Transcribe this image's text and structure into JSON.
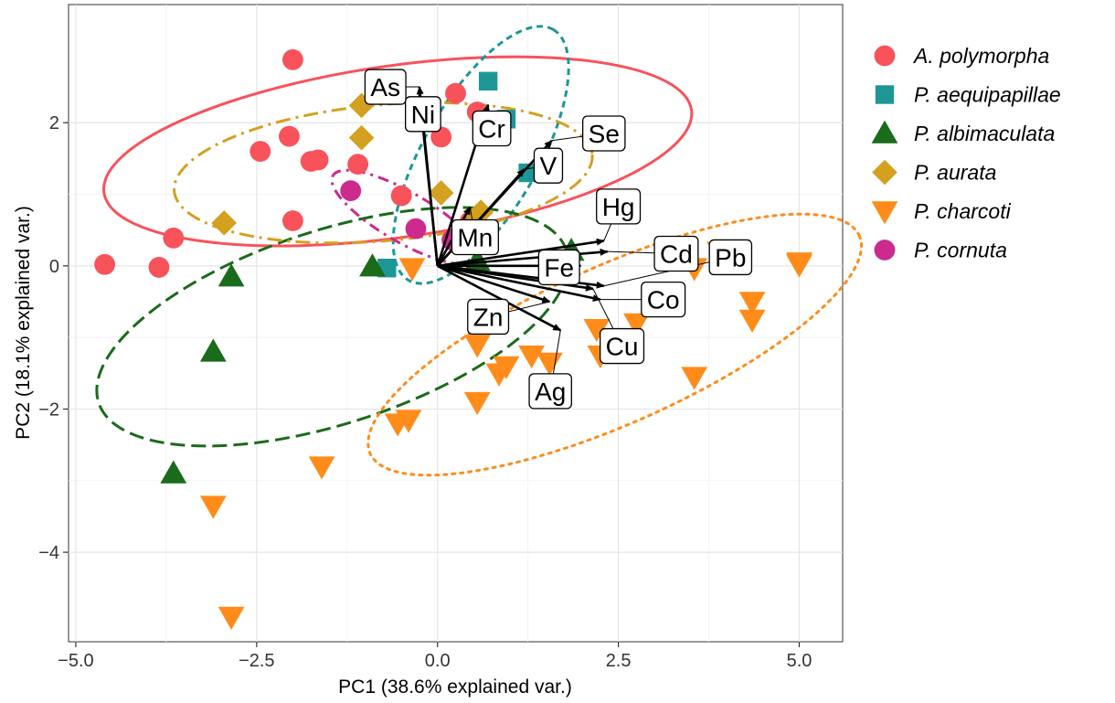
{
  "chart_data": {
    "type": "scatter",
    "subtype": "pca-biplot",
    "title": "",
    "xlabel": "PC1 (38.6% explained var.)",
    "ylabel": "PC2 (18.1% explained var.)",
    "xlim": [
      -5.1,
      5.6
    ],
    "ylim": [
      -5.25,
      3.65
    ],
    "xticks": [
      -5.0,
      -2.5,
      0.0,
      2.5,
      5.0
    ],
    "xtick_labels": [
      "−5.0",
      "−2.5",
      "0.0",
      "2.5",
      "5.0"
    ],
    "yticks": [
      -4,
      -2,
      0,
      2
    ],
    "ytick_labels": [
      "−4",
      "−2",
      "0",
      "2"
    ],
    "grid": true,
    "legend_position": "right",
    "series": [
      {
        "name": "A. polymorpha",
        "color": "#F8525A",
        "marker": "circle",
        "ellipse_style": "solid",
        "points": [
          [
            -4.6,
            0.02
          ],
          [
            -3.85,
            -0.02
          ],
          [
            -3.65,
            0.39
          ],
          [
            -2.45,
            1.6
          ],
          [
            -2.0,
            2.88
          ],
          [
            -2.05,
            1.81
          ],
          [
            -2.0,
            0.63
          ],
          [
            -1.75,
            1.46
          ],
          [
            -1.65,
            1.48
          ],
          [
            -1.1,
            1.42
          ],
          [
            -0.5,
            0.98
          ],
          [
            0.05,
            1.8
          ],
          [
            0.25,
            2.41
          ],
          [
            0.55,
            2.15
          ],
          [
            0.45,
            0.62
          ]
        ],
        "ellipse": {
          "cx": -0.55,
          "cy": 1.6,
          "rx": 4.1,
          "ry": 1.2,
          "angle_deg": 8
        }
      },
      {
        "name": "P. aequipapillae",
        "color": "#1E9696",
        "marker": "square",
        "ellipse_style": "dashed",
        "points": [
          [
            -0.7,
            -0.03
          ],
          [
            0.7,
            2.58
          ],
          [
            0.95,
            2.05
          ],
          [
            1.25,
            1.3
          ]
        ],
        "ellipse": {
          "cx": 0.6,
          "cy": 1.55,
          "rx": 2.0,
          "ry": 0.8,
          "angle_deg": 60
        }
      },
      {
        "name": "P. albimaculata",
        "color": "#1A6B1A",
        "marker": "triangle-up",
        "ellipse_style": "longdash",
        "points": [
          [
            -2.85,
            -0.15
          ],
          [
            -3.1,
            -1.2
          ],
          [
            -3.65,
            -2.9
          ],
          [
            -0.9,
            -0.01
          ],
          [
            0.55,
            0.07
          ],
          [
            1.6,
            -0.01
          ],
          [
            1.85,
            0.21
          ]
        ],
        "ellipse": {
          "cx": -1.45,
          "cy": -0.85,
          "rx": 3.4,
          "ry": 1.35,
          "angle_deg": 18
        }
      },
      {
        "name": "P. aurata",
        "color": "#D4A020",
        "marker": "diamond",
        "ellipse_style": "longdash-dot",
        "points": [
          [
            -2.95,
            0.6
          ],
          [
            -1.05,
            2.24
          ],
          [
            -1.05,
            1.79
          ],
          [
            0.05,
            1.02
          ],
          [
            0.55,
            0.7
          ],
          [
            0.6,
            0.75
          ]
        ],
        "ellipse": {
          "cx": -0.75,
          "cy": 1.3,
          "rx": 2.9,
          "ry": 0.95,
          "angle_deg": 5
        }
      },
      {
        "name": "P. charcoti",
        "color": "#FF8C1A",
        "marker": "triangle-down",
        "ellipse_style": "dotted",
        "points": [
          [
            -3.1,
            -3.35
          ],
          [
            -2.85,
            -4.9
          ],
          [
            -1.6,
            -2.8
          ],
          [
            -0.55,
            -2.2
          ],
          [
            -0.4,
            -2.15
          ],
          [
            -0.35,
            -0.03
          ],
          [
            0.55,
            -1.9
          ],
          [
            0.55,
            -1.1
          ],
          [
            0.85,
            -1.5
          ],
          [
            0.95,
            -1.4
          ],
          [
            1.3,
            -1.25
          ],
          [
            1.55,
            -1.35
          ],
          [
            2.2,
            -0.88
          ],
          [
            2.25,
            -1.25
          ],
          [
            2.75,
            -0.8
          ],
          [
            3.55,
            -0.03
          ],
          [
            3.55,
            -1.55
          ],
          [
            3.9,
            0.2
          ],
          [
            4.35,
            -0.5
          ],
          [
            4.35,
            -0.75
          ],
          [
            5.0,
            0.02
          ],
          [
            5.0,
            0.05
          ]
        ],
        "ellipse": {
          "cx": 2.45,
          "cy": -1.1,
          "rx": 3.7,
          "ry": 1.1,
          "angle_deg": 24
        }
      },
      {
        "name": "P. cornuta",
        "color": "#CC2A8C",
        "marker": "circle",
        "ellipse_style": "dotdash",
        "points": [
          [
            -1.2,
            1.05
          ],
          [
            -0.3,
            0.52
          ],
          [
            0.2,
            0.36
          ]
        ],
        "ellipse": {
          "cx": -0.45,
          "cy": 0.68,
          "rx": 1.15,
          "ry": 0.35,
          "angle_deg": -30
        }
      }
    ],
    "loadings": [
      {
        "name": "As",
        "x": -0.25,
        "y": 2.5,
        "label_x": -0.72,
        "label_y": 2.5
      },
      {
        "name": "Ni",
        "x": -0.25,
        "y": 2.4,
        "label_x": -0.2,
        "label_y": 2.12
      },
      {
        "name": "Cr",
        "x": 0.7,
        "y": 2.25,
        "label_x": 0.75,
        "label_y": 1.92
      },
      {
        "name": "Se",
        "x": 1.58,
        "y": 1.75,
        "label_x": 2.3,
        "label_y": 1.85
      },
      {
        "name": "V",
        "x": 1.2,
        "y": 1.35,
        "label_x": 1.53,
        "label_y": 1.4
      },
      {
        "name": "Mn",
        "x": 0.45,
        "y": 0.82,
        "label_x": 0.52,
        "label_y": 0.4
      },
      {
        "name": "Hg",
        "x": 2.3,
        "y": 0.35,
        "label_x": 2.5,
        "label_y": 0.83
      },
      {
        "name": "Cd",
        "x": 2.35,
        "y": 0.2,
        "label_x": 3.3,
        "label_y": 0.17
      },
      {
        "name": "Pb",
        "x": 2.3,
        "y": -0.28,
        "label_x": 4.05,
        "label_y": 0.12
      },
      {
        "name": "Fe",
        "x": 1.98,
        "y": 0.0,
        "label_x": 1.68,
        "label_y": -0.02
      },
      {
        "name": "Co",
        "x": 2.25,
        "y": -0.47,
        "label_x": 3.12,
        "label_y": -0.47
      },
      {
        "name": "Zn",
        "x": 1.55,
        "y": -0.5,
        "label_x": 0.7,
        "label_y": -0.71
      },
      {
        "name": "Cu",
        "x": 2.15,
        "y": -0.32,
        "label_x": 2.55,
        "label_y": -1.12
      },
      {
        "name": "Ag",
        "x": 1.7,
        "y": -0.9,
        "label_x": 1.56,
        "label_y": -1.75
      }
    ]
  }
}
